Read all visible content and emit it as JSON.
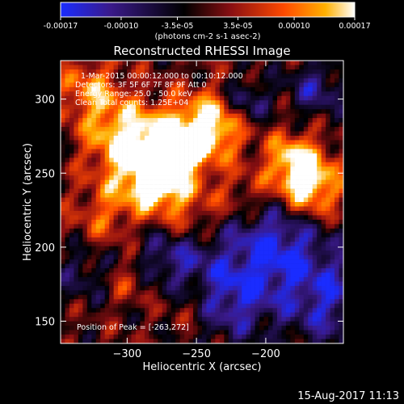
{
  "colorbar": {
    "ticks": [
      "-0.00017",
      "-0.00010",
      "-3.5e-05",
      "3.5e-05",
      "0.00010",
      "0.00017"
    ],
    "tick_values": [
      -0.00017,
      -0.0001,
      -3.5e-05,
      3.5e-05,
      0.0001,
      0.00017
    ],
    "range": [
      -0.00017,
      0.00017
    ],
    "units": "(photons cm-2 s-1 asec-2)",
    "colors": [
      "#1a2cff",
      "#3a1a8a",
      "#000000",
      "#8a0f12",
      "#ff4a00",
      "#ffb000",
      "#ffffff"
    ]
  },
  "chart_data": {
    "type": "heatmap",
    "title": "Reconstructed RHESSI Image",
    "xlabel": "Heliocentric X (arcsec)",
    "ylabel": "Heliocentric Y (arcsec)",
    "xlim": [
      -348,
      -144
    ],
    "ylim": [
      135,
      326
    ],
    "xticks": [
      -300,
      -250,
      -200
    ],
    "yticks": [
      150,
      200,
      250,
      300
    ],
    "peak": [
      -263,
      272
    ],
    "annotations": [
      "1-Mar-2015 00:00:12.000 to 00:10:12.000",
      "Detectors: 3F 5F 6F 7F 8F 9F  Att 0",
      "Energy Range: 25.0 - 50.0 keV",
      "Clean    Total counts: 1.25E+04"
    ],
    "peak_label": "Position of Peak = [-263,272]"
  },
  "footer": {
    "date": "15-Aug-2017 11:13"
  }
}
